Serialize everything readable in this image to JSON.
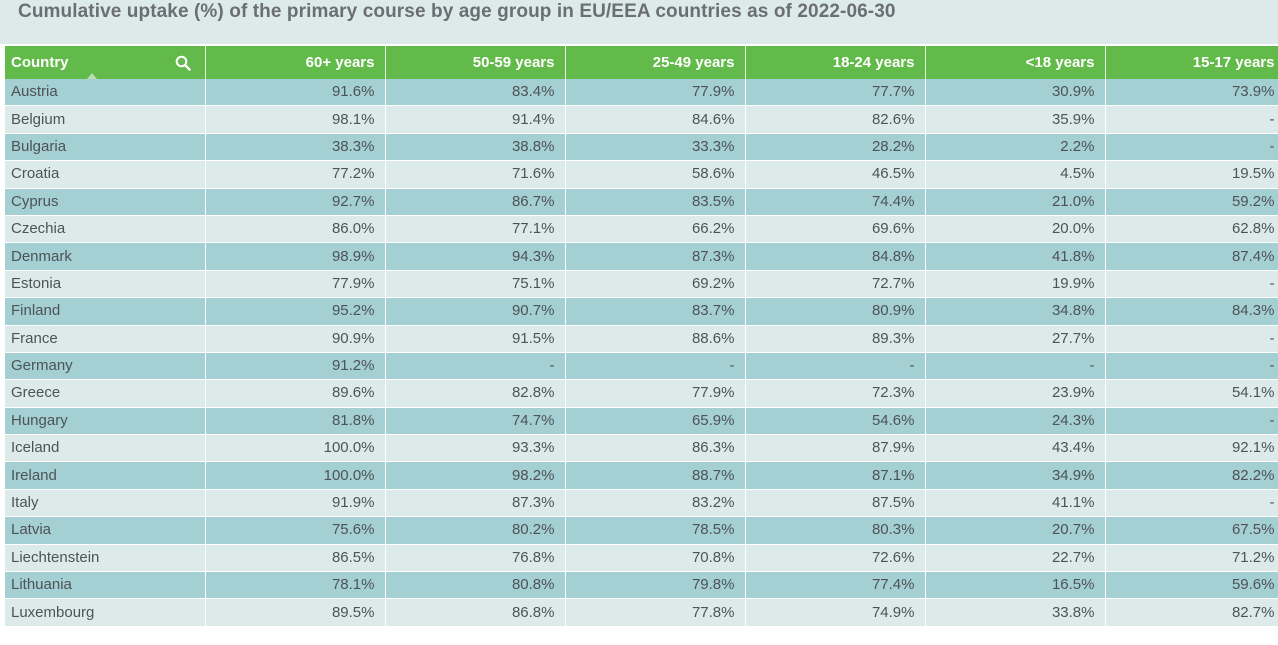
{
  "title": "Cumulative uptake (%) of the primary course by age group in EU/EEA countries as of 2022-06-30",
  "colors": {
    "header_bg": "#62ba4a",
    "row_dark": "#a4cfd3",
    "row_light": "#dcebea",
    "title_text": "#6b6f73"
  },
  "chart_data": {
    "type": "table",
    "columns": [
      "Country",
      "60+ years",
      "50-59 years",
      "25-49 years",
      "18-24 years",
      "<18 years",
      "15-17 years"
    ],
    "rows": [
      [
        "Austria",
        "91.6%",
        "83.4%",
        "77.9%",
        "77.7%",
        "30.9%",
        "73.9%"
      ],
      [
        "Belgium",
        "98.1%",
        "91.4%",
        "84.6%",
        "82.6%",
        "35.9%",
        "-"
      ],
      [
        "Bulgaria",
        "38.3%",
        "38.8%",
        "33.3%",
        "28.2%",
        "2.2%",
        "-"
      ],
      [
        "Croatia",
        "77.2%",
        "71.6%",
        "58.6%",
        "46.5%",
        "4.5%",
        "19.5%"
      ],
      [
        "Cyprus",
        "92.7%",
        "86.7%",
        "83.5%",
        "74.4%",
        "21.0%",
        "59.2%"
      ],
      [
        "Czechia",
        "86.0%",
        "77.1%",
        "66.2%",
        "69.6%",
        "20.0%",
        "62.8%"
      ],
      [
        "Denmark",
        "98.9%",
        "94.3%",
        "87.3%",
        "84.8%",
        "41.8%",
        "87.4%"
      ],
      [
        "Estonia",
        "77.9%",
        "75.1%",
        "69.2%",
        "72.7%",
        "19.9%",
        "-"
      ],
      [
        "Finland",
        "95.2%",
        "90.7%",
        "83.7%",
        "80.9%",
        "34.8%",
        "84.3%"
      ],
      [
        "France",
        "90.9%",
        "91.5%",
        "88.6%",
        "89.3%",
        "27.7%",
        "-"
      ],
      [
        "Germany",
        "91.2%",
        "-",
        "-",
        "-",
        "-",
        "-"
      ],
      [
        "Greece",
        "89.6%",
        "82.8%",
        "77.9%",
        "72.3%",
        "23.9%",
        "54.1%"
      ],
      [
        "Hungary",
        "81.8%",
        "74.7%",
        "65.9%",
        "54.6%",
        "24.3%",
        "-"
      ],
      [
        "Iceland",
        "100.0%",
        "93.3%",
        "86.3%",
        "87.9%",
        "43.4%",
        "92.1%"
      ],
      [
        "Ireland",
        "100.0%",
        "98.2%",
        "88.7%",
        "87.1%",
        "34.9%",
        "82.2%"
      ],
      [
        "Italy",
        "91.9%",
        "87.3%",
        "83.2%",
        "87.5%",
        "41.1%",
        "-"
      ],
      [
        "Latvia",
        "75.6%",
        "80.2%",
        "78.5%",
        "80.3%",
        "20.7%",
        "67.5%"
      ],
      [
        "Liechtenstein",
        "86.5%",
        "76.8%",
        "70.8%",
        "72.6%",
        "22.7%",
        "71.2%"
      ],
      [
        "Lithuania",
        "78.1%",
        "80.8%",
        "79.8%",
        "77.4%",
        "16.5%",
        "59.6%"
      ],
      [
        "Luxembourg",
        "89.5%",
        "86.8%",
        "77.8%",
        "74.9%",
        "33.8%",
        "82.7%"
      ]
    ]
  },
  "icons": {
    "search": "search-icon",
    "sort": "sort-ascending-caret-icon"
  }
}
